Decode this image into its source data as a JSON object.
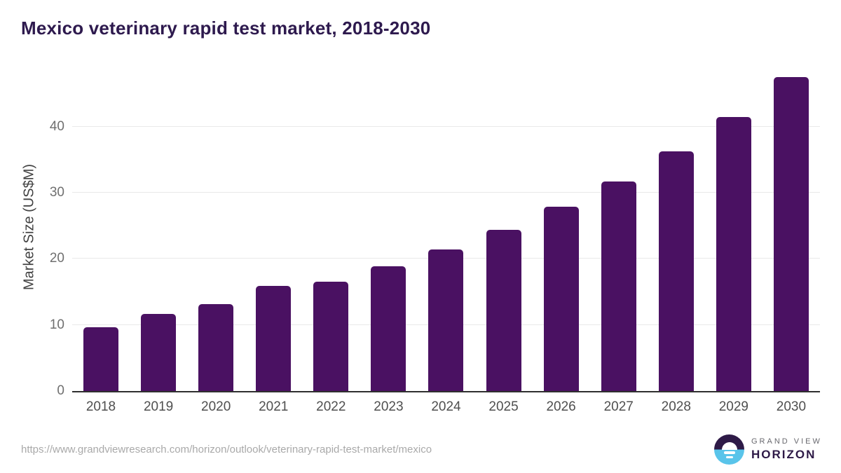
{
  "header": {
    "title": "Mexico veterinary rapid test market, 2018-2030",
    "title_color": "#2e1a4e"
  },
  "chart_data": {
    "type": "bar",
    "title": "Mexico veterinary rapid test market, 2018-2030",
    "categories": [
      "2018",
      "2019",
      "2020",
      "2021",
      "2022",
      "2023",
      "2024",
      "2025",
      "2026",
      "2027",
      "2028",
      "2029",
      "2030"
    ],
    "values": [
      9.6,
      11.7,
      13.1,
      15.9,
      16.5,
      18.9,
      21.4,
      24.4,
      27.9,
      31.7,
      36.2,
      41.4,
      47.5
    ],
    "xlabel": "",
    "ylabel": "Market Size (US$M)",
    "yticks": [
      0,
      10,
      20,
      30,
      40
    ],
    "ylim": [
      0,
      49.6
    ],
    "grid": "horizontal",
    "legend": "none",
    "bar_color": "#4a1162",
    "gridline_color": "#e9e9e9",
    "axis_line_color": "#2f2f2f",
    "y_tick_color": "#6f6f6f",
    "x_tick_color": "#4f4f4f",
    "y_axis_title_color": "#414141"
  },
  "footer": {
    "source_url": "https://www.grandviewresearch.com/horizon/outlook/veterinary-rapid-test-market/mexico",
    "source_url_color": "#a9a9a9",
    "logo": {
      "line1": "GRAND VIEW",
      "line2": "HORIZON",
      "line1_color": "#68686e",
      "line2_color": "#2e1a47",
      "mark_top_color": "#2e1a47",
      "mark_bottom_color": "#59c4ea"
    }
  }
}
